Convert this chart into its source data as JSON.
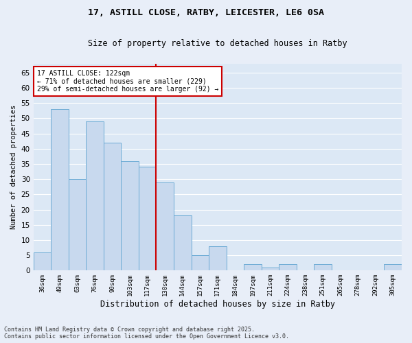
{
  "title_line1": "17, ASTILL CLOSE, RATBY, LEICESTER, LE6 0SA",
  "title_line2": "Size of property relative to detached houses in Ratby",
  "xlabel": "Distribution of detached houses by size in Ratby",
  "ylabel": "Number of detached properties",
  "categories": [
    "36sqm",
    "49sqm",
    "63sqm",
    "76sqm",
    "90sqm",
    "103sqm",
    "117sqm",
    "130sqm",
    "144sqm",
    "157sqm",
    "171sqm",
    "184sqm",
    "197sqm",
    "211sqm",
    "224sqm",
    "238sqm",
    "251sqm",
    "265sqm",
    "278sqm",
    "292sqm",
    "305sqm"
  ],
  "values": [
    6,
    53,
    30,
    49,
    42,
    36,
    34,
    29,
    18,
    5,
    8,
    0,
    2,
    1,
    2,
    0,
    2,
    0,
    0,
    0,
    2
  ],
  "bar_color": "#c8d9ee",
  "bar_edge_color": "#6aaad4",
  "bar_edge_width": 0.7,
  "vline_x_index": 6,
  "vline_x_offset": 0.5,
  "vline_color": "#cc0000",
  "annotation_line1": "17 ASTILL CLOSE: 122sqm",
  "annotation_line2": "← 71% of detached houses are smaller (229)",
  "annotation_line3": "29% of semi-detached houses are larger (92) →",
  "box_facecolor": "#ffffff",
  "box_edgecolor": "#cc0000",
  "ylim": [
    0,
    68
  ],
  "yticks": [
    0,
    5,
    10,
    15,
    20,
    25,
    30,
    35,
    40,
    45,
    50,
    55,
    60,
    65
  ],
  "fig_facecolor": "#e8eef8",
  "ax_facecolor": "#dce8f5",
  "grid_color": "#ffffff",
  "footer_line1": "Contains HM Land Registry data © Crown copyright and database right 2025.",
  "footer_line2": "Contains public sector information licensed under the Open Government Licence v3.0."
}
